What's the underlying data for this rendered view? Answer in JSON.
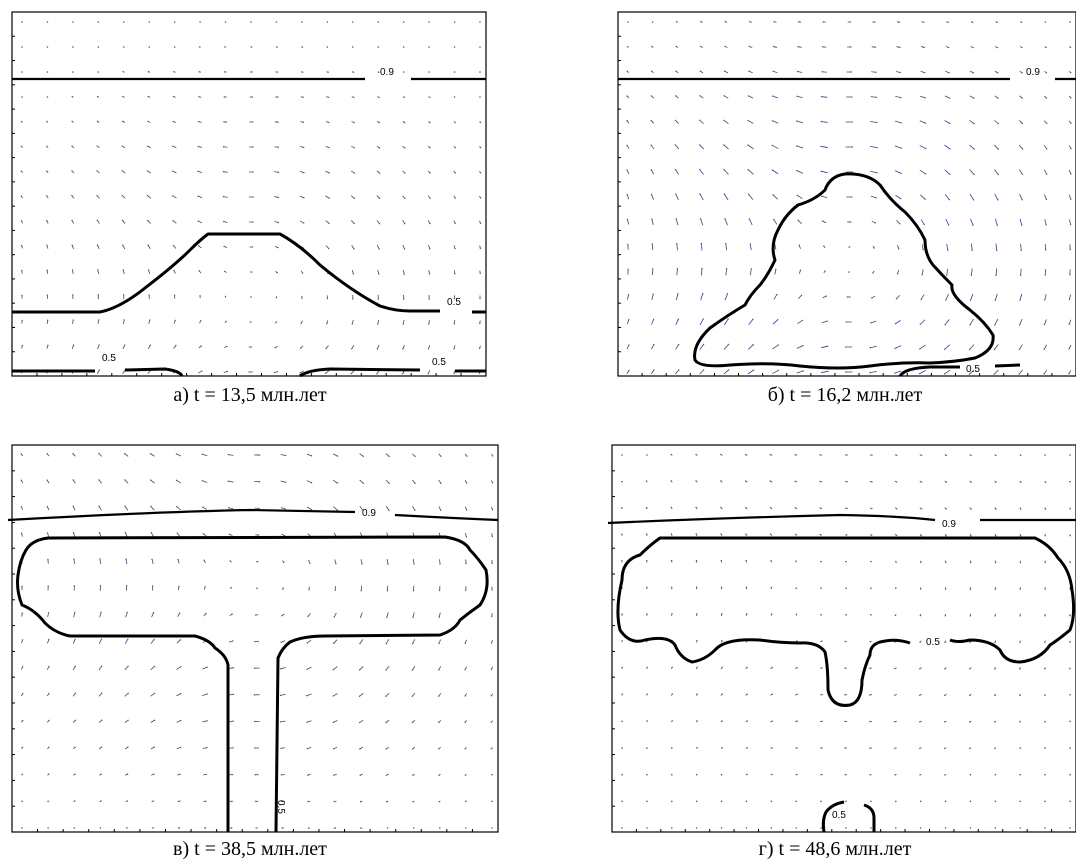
{
  "colors": {
    "vector_blue": "#3a3ab0",
    "vector_red": "#c03030",
    "contour": "#000000"
  },
  "panels": [
    {
      "id": "a",
      "caption": "а) t = 13,5 млн.лет",
      "labels": {
        "upper": "0.9",
        "mid": "0.5",
        "bottom_left": "0.5",
        "bottom_right": "0.5"
      }
    },
    {
      "id": "b",
      "caption": "б) t = 16,2 млн.лет",
      "labels": {
        "upper": "0.9",
        "bottom": "0.5"
      }
    },
    {
      "id": "c",
      "caption": "в) t = 38,5 млн.лет",
      "labels": {
        "upper": "0.9",
        "stem": "0.5"
      }
    },
    {
      "id": "d",
      "caption": "г) t = 48,6 млн.лет",
      "labels": {
        "upper": "0.9",
        "mid": "0.5",
        "bottom": "0.5"
      }
    }
  ]
}
